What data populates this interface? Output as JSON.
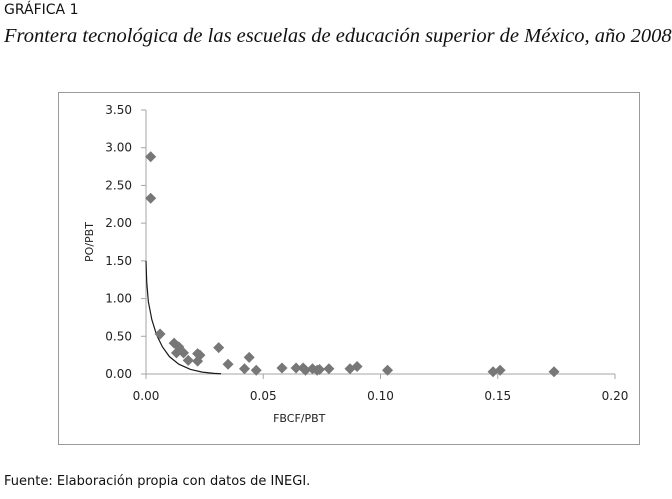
{
  "figure": {
    "label": "GRÁFICA 1",
    "title": "Frontera tecnológica de las escuelas de educación superior de México, año 2008",
    "source": "Fuente: Elaboración propia con datos de INEGI."
  },
  "chart_data": {
    "type": "scatter",
    "title": "Frontera tecnológica de las escuelas de educación superior de México, año 2008",
    "xlabel": "FBCF/PBT",
    "ylabel": "PO/PBT",
    "xlim": [
      0,
      0.2
    ],
    "ylim": [
      0,
      3.5
    ],
    "x_ticks": [
      "0.00",
      "0.05",
      "0.10",
      "0.15",
      "0.20"
    ],
    "y_ticks": [
      "0.00",
      "0.50",
      "1.00",
      "1.50",
      "2.00",
      "2.50",
      "3.00",
      "3.50"
    ],
    "grid": false,
    "legend": "none",
    "colors": {
      "points": "#777777",
      "frontier": "#1a1a1a",
      "axis": "#a6a6a6"
    },
    "points": [
      {
        "x": 0.002,
        "y": 2.88
      },
      {
        "x": 0.002,
        "y": 2.33
      },
      {
        "x": 0.006,
        "y": 0.53
      },
      {
        "x": 0.012,
        "y": 0.41
      },
      {
        "x": 0.014,
        "y": 0.36
      },
      {
        "x": 0.013,
        "y": 0.28
      },
      {
        "x": 0.016,
        "y": 0.28
      },
      {
        "x": 0.018,
        "y": 0.18
      },
      {
        "x": 0.022,
        "y": 0.17
      },
      {
        "x": 0.022,
        "y": 0.27
      },
      {
        "x": 0.023,
        "y": 0.25
      },
      {
        "x": 0.031,
        "y": 0.35
      },
      {
        "x": 0.035,
        "y": 0.13
      },
      {
        "x": 0.042,
        "y": 0.07
      },
      {
        "x": 0.044,
        "y": 0.22
      },
      {
        "x": 0.047,
        "y": 0.05
      },
      {
        "x": 0.058,
        "y": 0.08
      },
      {
        "x": 0.064,
        "y": 0.08
      },
      {
        "x": 0.067,
        "y": 0.08
      },
      {
        "x": 0.068,
        "y": 0.05
      },
      {
        "x": 0.071,
        "y": 0.07
      },
      {
        "x": 0.073,
        "y": 0.05
      },
      {
        "x": 0.074,
        "y": 0.06
      },
      {
        "x": 0.078,
        "y": 0.07
      },
      {
        "x": 0.087,
        "y": 0.07
      },
      {
        "x": 0.09,
        "y": 0.1
      },
      {
        "x": 0.103,
        "y": 0.05
      },
      {
        "x": 0.148,
        "y": 0.03
      },
      {
        "x": 0.151,
        "y": 0.05
      },
      {
        "x": 0.174,
        "y": 0.03
      }
    ],
    "frontier_curve": [
      {
        "x": 0.0,
        "y": 1.5
      },
      {
        "x": 0.0003,
        "y": 1.22
      },
      {
        "x": 0.001,
        "y": 0.96
      },
      {
        "x": 0.0025,
        "y": 0.72
      },
      {
        "x": 0.0045,
        "y": 0.52
      },
      {
        "x": 0.007,
        "y": 0.36
      },
      {
        "x": 0.01,
        "y": 0.23
      },
      {
        "x": 0.014,
        "y": 0.13
      },
      {
        "x": 0.019,
        "y": 0.06
      },
      {
        "x": 0.024,
        "y": 0.025
      },
      {
        "x": 0.029,
        "y": 0.008
      },
      {
        "x": 0.032,
        "y": 0.003
      }
    ]
  }
}
